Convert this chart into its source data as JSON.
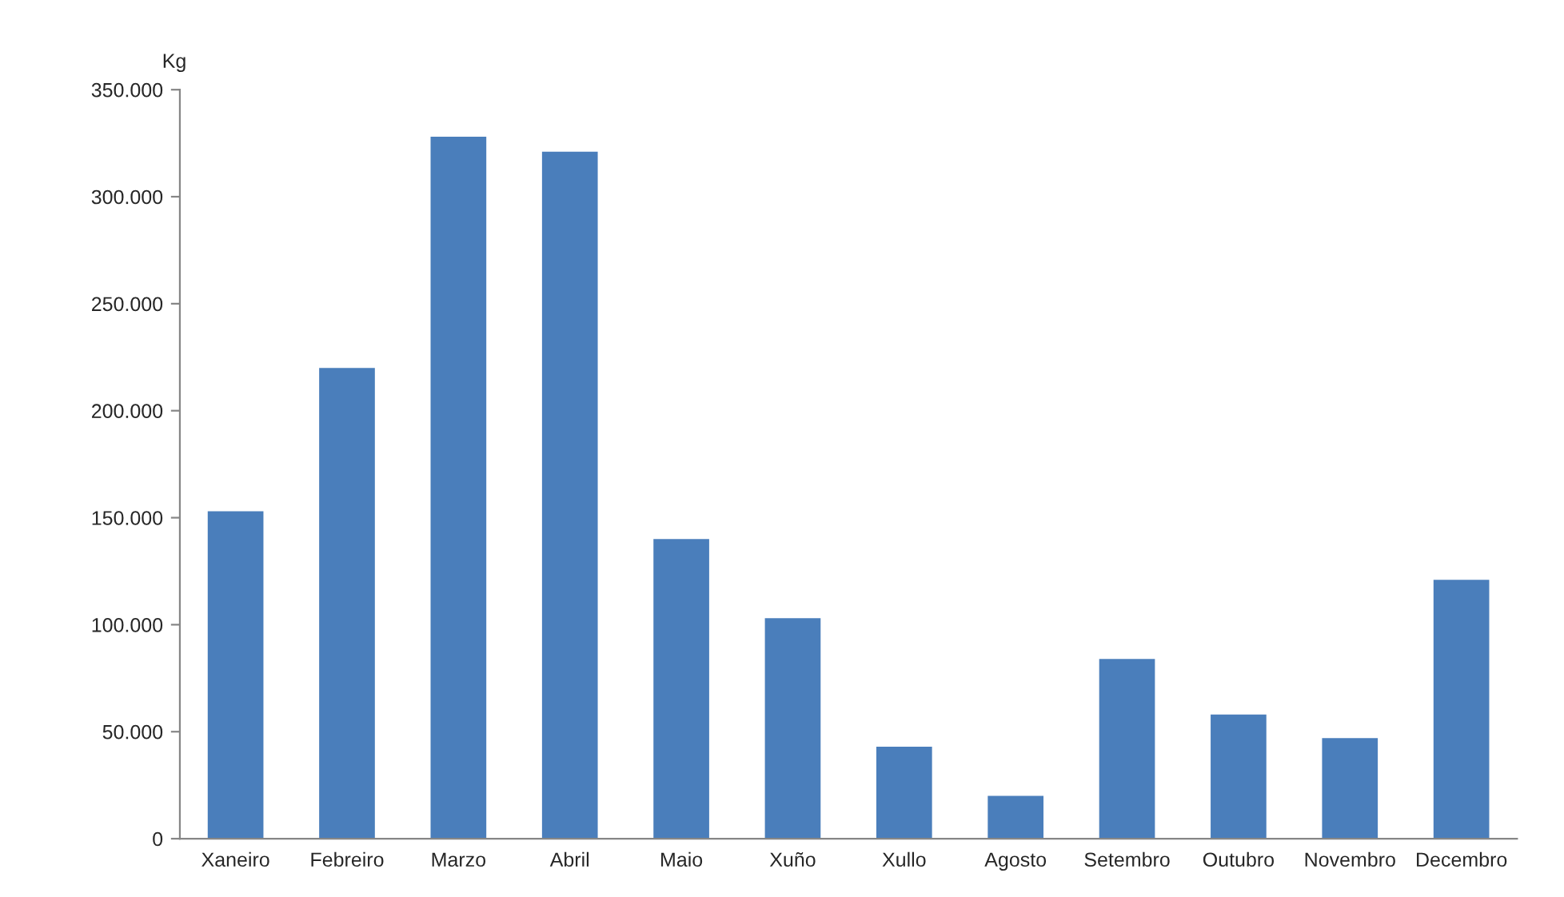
{
  "chart_data": {
    "type": "bar",
    "ylabel": "Kg",
    "categories": [
      "Xaneiro",
      "Febreiro",
      "Marzo",
      "Abril",
      "Maio",
      "Xuño",
      "Xullo",
      "Agosto",
      "Setembro",
      "Outubro",
      "Novembro",
      "Decembro"
    ],
    "values": [
      153000,
      220000,
      328000,
      321000,
      140000,
      103000,
      43000,
      20000,
      84000,
      58000,
      47000,
      121000
    ],
    "color": "#4a7ebb",
    "ylim": [
      0,
      350000
    ],
    "yticks": [
      {
        "value": 0,
        "label": "0"
      },
      {
        "value": 50000,
        "label": "50.000"
      },
      {
        "value": 100000,
        "label": "100.000"
      },
      {
        "value": 150000,
        "label": "150.000"
      },
      {
        "value": 200000,
        "label": "200.000"
      },
      {
        "value": 250000,
        "label": "250.000"
      },
      {
        "value": 300000,
        "label": "300.000"
      },
      {
        "value": 350000,
        "label": "350.000"
      }
    ],
    "grid": false,
    "legend": false
  }
}
